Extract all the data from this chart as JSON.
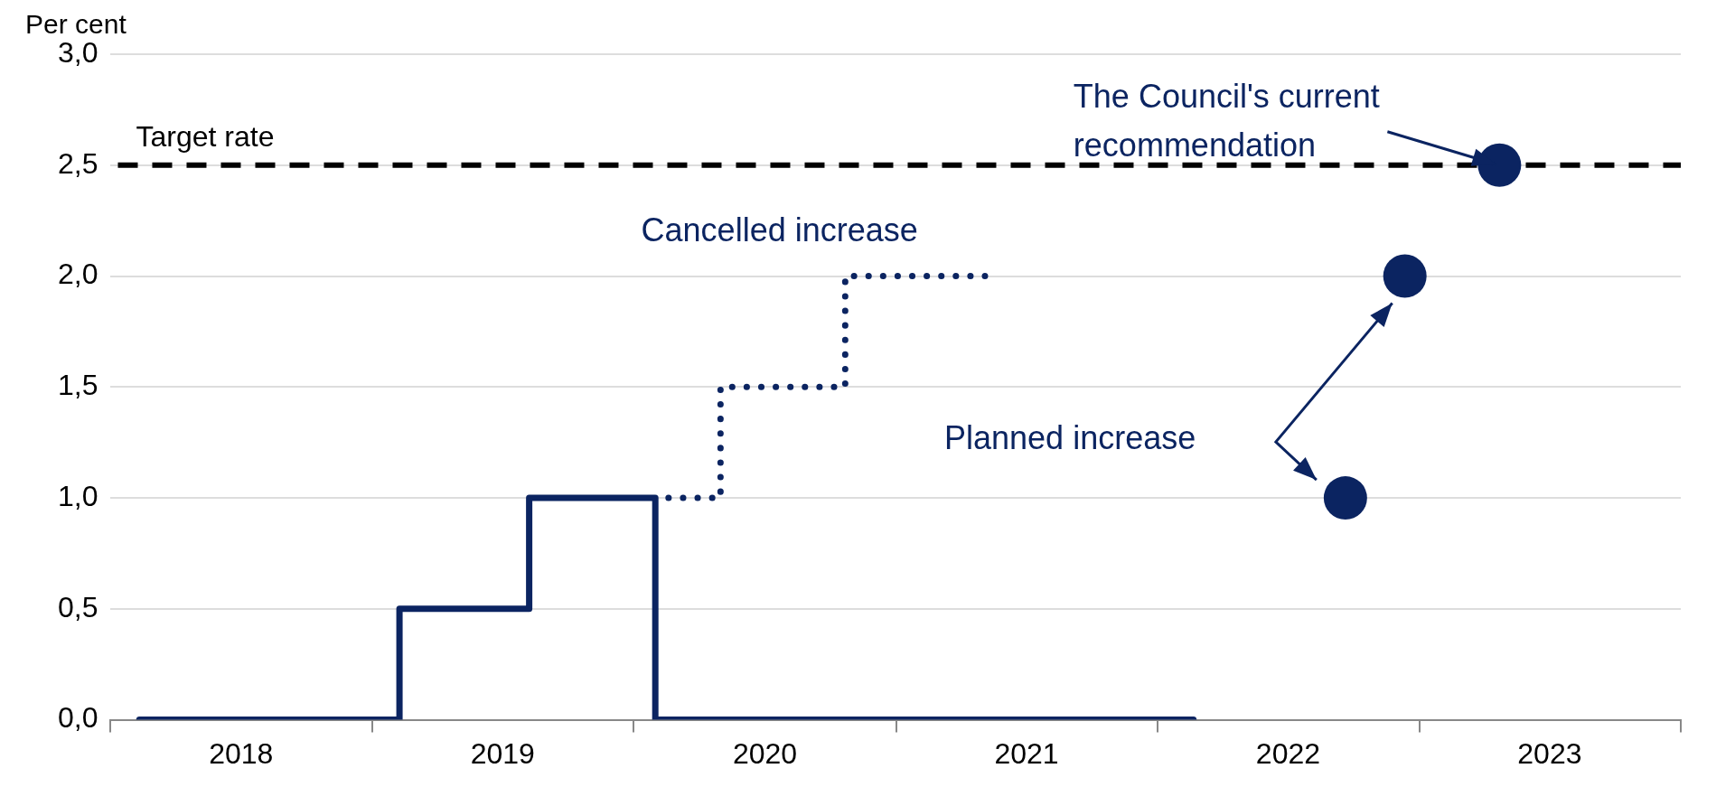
{
  "chart_data": {
    "type": "step",
    "ylabel": "Per cent",
    "xlim": [
      "2018-01-01",
      "2024-01-01"
    ],
    "xticks": [
      {
        "value": "2018-01-01",
        "label": null
      },
      {
        "value": "2018-07-02",
        "label": "2018"
      },
      {
        "value": "2019-01-01",
        "label": null
      },
      {
        "value": "2019-07-02",
        "label": "2019"
      },
      {
        "value": "2020-01-01",
        "label": null
      },
      {
        "value": "2020-07-02",
        "label": "2020"
      },
      {
        "value": "2021-01-01",
        "label": null
      },
      {
        "value": "2021-07-02",
        "label": "2021"
      },
      {
        "value": "2022-01-01",
        "label": null
      },
      {
        "value": "2022-07-02",
        "label": "2022"
      },
      {
        "value": "2023-01-01",
        "label": null
      },
      {
        "value": "2023-07-02",
        "label": "2023"
      },
      {
        "value": "2024-01-01",
        "label": null
      }
    ],
    "ylim": [
      0,
      3
    ],
    "yticks": [
      {
        "value": 0,
        "label": "0,0"
      },
      {
        "value": 0.5,
        "label": "0,5"
      },
      {
        "value": 1,
        "label": "1,0"
      },
      {
        "value": 1.5,
        "label": "1,5"
      },
      {
        "value": 2,
        "label": "2,0"
      },
      {
        "value": 2.5,
        "label": "2,5"
      },
      {
        "value": 3,
        "label": "3,0"
      }
    ],
    "grid": "y",
    "legend": false,
    "series": [
      {
        "color": "#0b2461",
        "line_style": "solid",
        "marker": "none",
        "x": [
          "2018-02-10",
          "2019-02-08",
          "2019-08-08",
          "2020-01-31",
          "2022-02-20"
        ],
        "values": [
          0,
          0.5,
          1,
          0,
          0
        ]
      },
      {
        "color": "#0b2461",
        "line_style": "dotted",
        "marker": "none",
        "x": [
          "2020-01-31",
          "2020-05-01",
          "2020-10-22",
          "2021-05-05"
        ],
        "values": [
          1,
          1.5,
          2,
          2
        ]
      },
      {
        "type": "scatter",
        "color": "#0b2461",
        "marker": "circle",
        "x": [
          "2022-09-20",
          "2022-12-12",
          "2023-04-23"
        ],
        "values": [
          1,
          2,
          2.5
        ]
      }
    ],
    "ref_lines": [
      {
        "axis": "y",
        "value": 2.5,
        "label": "Target rate",
        "color": "#000000",
        "line_style": "dashed"
      }
    ],
    "annotations": [
      "Cancelled increase",
      "Planned increase",
      {
        "text": "The Council's current recommendation",
        "x": "2023-04-23",
        "y": 2.5
      }
    ]
  }
}
